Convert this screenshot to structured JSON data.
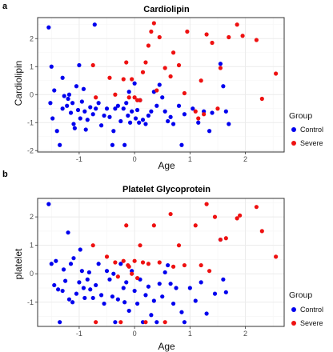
{
  "colors": {
    "Control": "#0000ee",
    "Severe": "#ee1111",
    "grid_major": "#ebebeb",
    "grid_minor": "#f5f5f5",
    "panel_border": "#333333"
  },
  "chart_data": [
    {
      "panel": "a",
      "type": "scatter",
      "title": "Cardiolipin",
      "xlabel": "Age",
      "ylabel": "Cardiolipin",
      "xlim": [
        -1.75,
        2.7
      ],
      "ylim": [
        -2.05,
        2.75
      ],
      "xticks": [
        -1,
        0,
        1,
        2
      ],
      "yticks": [
        -2,
        -1,
        0,
        1,
        2
      ],
      "grid": true,
      "legend": {
        "title": "Group",
        "position": "right",
        "entries": [
          "Control",
          "Severe"
        ]
      },
      "series": [
        {
          "name": "Control",
          "color": "#0000ee",
          "points": [
            [
              -1.55,
              2.4
            ],
            [
              -1.5,
              1.0
            ],
            [
              -1.52,
              -0.3
            ],
            [
              -1.45,
              0.15
            ],
            [
              -1.48,
              -0.85
            ],
            [
              -1.4,
              -1.3
            ],
            [
              -1.35,
              -1.8
            ],
            [
              -1.3,
              -0.5
            ],
            [
              -1.3,
              0.6
            ],
            [
              -1.27,
              -0.05
            ],
            [
              -1.22,
              -0.4
            ],
            [
              -1.2,
              -0.15
            ],
            [
              -1.18,
              0.0
            ],
            [
              -1.15,
              -0.65
            ],
            [
              -1.12,
              -0.3
            ],
            [
              -1.1,
              -1.05
            ],
            [
              -1.08,
              -1.2
            ],
            [
              -1.05,
              0.3
            ],
            [
              -1.02,
              -0.55
            ],
            [
              -1.0,
              1.05
            ],
            [
              -0.98,
              -0.85
            ],
            [
              -0.95,
              -0.25
            ],
            [
              -0.92,
              0.2
            ],
            [
              -0.9,
              -0.6
            ],
            [
              -0.88,
              -1.25
            ],
            [
              -0.85,
              -0.9
            ],
            [
              -0.8,
              -0.45
            ],
            [
              -0.75,
              -0.7
            ],
            [
              -0.72,
              2.5
            ],
            [
              -0.7,
              -0.5
            ],
            [
              -0.65,
              -0.3
            ],
            [
              -0.6,
              -1.1
            ],
            [
              -0.55,
              -0.75
            ],
            [
              -0.5,
              -0.5
            ],
            [
              -0.45,
              -0.8
            ],
            [
              -0.4,
              -1.8
            ],
            [
              -0.38,
              -1.3
            ],
            [
              -0.35,
              -0.5
            ],
            [
              -0.3,
              -0.4
            ],
            [
              -0.25,
              -0.95
            ],
            [
              -0.2,
              -0.5
            ],
            [
              -0.18,
              -1.8
            ],
            [
              -0.15,
              -0.3
            ],
            [
              -0.12,
              -0.75
            ],
            [
              -0.1,
              0.1
            ],
            [
              -0.08,
              -1.0
            ],
            [
              -0.05,
              -0.6
            ],
            [
              0.0,
              0.4
            ],
            [
              0.02,
              -0.85
            ],
            [
              0.05,
              -0.55
            ],
            [
              0.08,
              -1.0
            ],
            [
              0.1,
              -0.2
            ],
            [
              0.15,
              -0.9
            ],
            [
              0.2,
              -1.05
            ],
            [
              0.25,
              -0.75
            ],
            [
              0.3,
              -0.6
            ],
            [
              0.35,
              0.1
            ],
            [
              0.4,
              -0.4
            ],
            [
              0.45,
              0.35
            ],
            [
              0.5,
              -0.1
            ],
            [
              0.55,
              -0.6
            ],
            [
              0.6,
              -0.95
            ],
            [
              0.65,
              -0.8
            ],
            [
              0.7,
              -1.05
            ],
            [
              0.8,
              -0.4
            ],
            [
              0.85,
              -1.8
            ],
            [
              0.9,
              -0.7
            ],
            [
              1.05,
              -0.5
            ],
            [
              1.15,
              -1.0
            ],
            [
              1.25,
              -0.6
            ],
            [
              1.35,
              -1.3
            ],
            [
              1.4,
              -0.65
            ],
            [
              1.55,
              1.1
            ],
            [
              1.6,
              0.3
            ],
            [
              1.65,
              -0.6
            ],
            [
              1.7,
              -1.05
            ]
          ]
        },
        {
          "name": "Severe",
          "color": "#ee1111",
          "points": [
            [
              -0.75,
              1.05
            ],
            [
              -0.7,
              -0.1
            ],
            [
              -0.45,
              0.6
            ],
            [
              -0.35,
              0.0
            ],
            [
              -0.2,
              0.55
            ],
            [
              -0.15,
              1.15
            ],
            [
              -0.1,
              -0.1
            ],
            [
              -0.05,
              0.55
            ],
            [
              0.0,
              -0.1
            ],
            [
              0.05,
              -0.2
            ],
            [
              0.1,
              -0.2
            ],
            [
              0.15,
              0.8
            ],
            [
              0.2,
              1.15
            ],
            [
              0.25,
              1.75
            ],
            [
              0.3,
              2.25
            ],
            [
              0.35,
              2.55
            ],
            [
              0.4,
              0.15
            ],
            [
              0.45,
              2.05
            ],
            [
              0.55,
              0.95
            ],
            [
              0.65,
              0.65
            ],
            [
              0.7,
              1.5
            ],
            [
              0.8,
              1.05
            ],
            [
              0.9,
              0.05
            ],
            [
              0.95,
              2.25
            ],
            [
              1.1,
              -0.6
            ],
            [
              1.15,
              -0.85
            ],
            [
              1.2,
              0.5
            ],
            [
              1.25,
              -0.7
            ],
            [
              1.3,
              2.15
            ],
            [
              1.4,
              1.85
            ],
            [
              1.5,
              -0.5
            ],
            [
              1.55,
              0.95
            ],
            [
              1.7,
              2.05
            ],
            [
              1.85,
              2.5
            ],
            [
              1.95,
              2.1
            ],
            [
              2.2,
              1.95
            ],
            [
              2.3,
              -0.15
            ],
            [
              2.55,
              0.75
            ]
          ]
        }
      ]
    },
    {
      "panel": "b",
      "type": "scatter",
      "title": "Platelet Glycoprotein",
      "xlabel": "Age",
      "ylabel": "platelet",
      "xlim": [
        -1.75,
        2.7
      ],
      "ylim": [
        -1.85,
        2.65
      ],
      "xticks": [
        -1,
        0,
        1,
        2
      ],
      "yticks": [
        -1,
        0,
        1,
        2
      ],
      "grid": true,
      "legend": {
        "title": "Group",
        "position": "right",
        "entries": [
          "Control",
          "Severe"
        ]
      },
      "series": [
        {
          "name": "Control",
          "color": "#0000ee",
          "points": [
            [
              -1.55,
              2.45
            ],
            [
              -1.5,
              0.35
            ],
            [
              -1.45,
              -0.4
            ],
            [
              -1.42,
              0.45
            ],
            [
              -1.38,
              -0.55
            ],
            [
              -1.35,
              -1.7
            ],
            [
              -1.3,
              -0.6
            ],
            [
              -1.28,
              0.15
            ],
            [
              -1.25,
              -0.25
            ],
            [
              -1.2,
              1.45
            ],
            [
              -1.18,
              -0.9
            ],
            [
              -1.15,
              0.35
            ],
            [
              -1.12,
              -1.0
            ],
            [
              -1.1,
              0.55
            ],
            [
              -1.05,
              -0.7
            ],
            [
              -1.0,
              -0.3
            ],
            [
              -0.98,
              0.85
            ],
            [
              -0.95,
              0.1
            ],
            [
              -0.92,
              -0.5
            ],
            [
              -0.9,
              -0.85
            ],
            [
              -0.85,
              -0.2
            ],
            [
              -0.82,
              0.05
            ],
            [
              -0.8,
              -0.55
            ],
            [
              -0.75,
              -0.85
            ],
            [
              -0.7,
              -0.4
            ],
            [
              -0.65,
              0.35
            ],
            [
              -0.6,
              -0.75
            ],
            [
              -0.55,
              -1.05
            ],
            [
              -0.5,
              0.1
            ],
            [
              -0.45,
              -0.2
            ],
            [
              -0.4,
              -0.8
            ],
            [
              -0.38,
              0.0
            ],
            [
              -0.35,
              -1.7
            ],
            [
              -0.3,
              -0.9
            ],
            [
              -0.25,
              0.35
            ],
            [
              -0.2,
              -0.5
            ],
            [
              -0.18,
              -1.0
            ],
            [
              -0.15,
              -0.3
            ],
            [
              -0.1,
              -1.3
            ],
            [
              -0.05,
              0.1
            ],
            [
              0.0,
              -0.6
            ],
            [
              0.05,
              -1.05
            ],
            [
              0.1,
              -0.2
            ],
            [
              0.15,
              -1.7
            ],
            [
              0.2,
              -0.75
            ],
            [
              0.25,
              -0.45
            ],
            [
              0.3,
              -1.45
            ],
            [
              0.35,
              -0.95
            ],
            [
              0.4,
              -1.7
            ],
            [
              0.45,
              -0.35
            ],
            [
              0.5,
              -0.8
            ],
            [
              0.55,
              0.05
            ],
            [
              0.6,
              0.3
            ],
            [
              0.65,
              -0.35
            ],
            [
              0.7,
              -1.05
            ],
            [
              0.75,
              -0.5
            ],
            [
              0.85,
              -1.35
            ],
            [
              0.9,
              -1.7
            ],
            [
              1.0,
              -0.5
            ],
            [
              1.1,
              -0.95
            ],
            [
              1.2,
              -0.3
            ],
            [
              1.3,
              -1.4
            ],
            [
              1.45,
              -0.7
            ],
            [
              1.55,
              1.2
            ],
            [
              1.6,
              -0.2
            ],
            [
              1.65,
              -0.65
            ]
          ]
        },
        {
          "name": "Severe",
          "color": "#ee1111",
          "points": [
            [
              -0.75,
              1.0
            ],
            [
              -0.7,
              -1.7
            ],
            [
              -0.5,
              0.6
            ],
            [
              -0.35,
              0.4
            ],
            [
              -0.3,
              -0.1
            ],
            [
              -0.25,
              -1.7
            ],
            [
              -0.2,
              0.45
            ],
            [
              -0.15,
              1.7
            ],
            [
              -0.12,
              0.3
            ],
            [
              -0.1,
              0.25
            ],
            [
              -0.05,
              0.0
            ],
            [
              0.0,
              0.45
            ],
            [
              0.05,
              -0.15
            ],
            [
              0.1,
              1.0
            ],
            [
              0.15,
              0.4
            ],
            [
              0.2,
              -1.7
            ],
            [
              0.25,
              0.35
            ],
            [
              0.35,
              1.7
            ],
            [
              0.45,
              0.4
            ],
            [
              0.55,
              -1.7
            ],
            [
              0.65,
              2.1
            ],
            [
              0.7,
              0.25
            ],
            [
              0.8,
              1.0
            ],
            [
              0.9,
              0.3
            ],
            [
              1.1,
              1.7
            ],
            [
              1.2,
              0.3
            ],
            [
              1.3,
              2.45
            ],
            [
              1.35,
              0.1
            ],
            [
              1.45,
              2.0
            ],
            [
              1.55,
              1.2
            ],
            [
              1.65,
              1.25
            ],
            [
              1.85,
              1.95
            ],
            [
              1.9,
              2.05
            ],
            [
              2.2,
              2.35
            ],
            [
              2.3,
              1.5
            ],
            [
              2.55,
              0.6
            ]
          ]
        }
      ]
    }
  ]
}
